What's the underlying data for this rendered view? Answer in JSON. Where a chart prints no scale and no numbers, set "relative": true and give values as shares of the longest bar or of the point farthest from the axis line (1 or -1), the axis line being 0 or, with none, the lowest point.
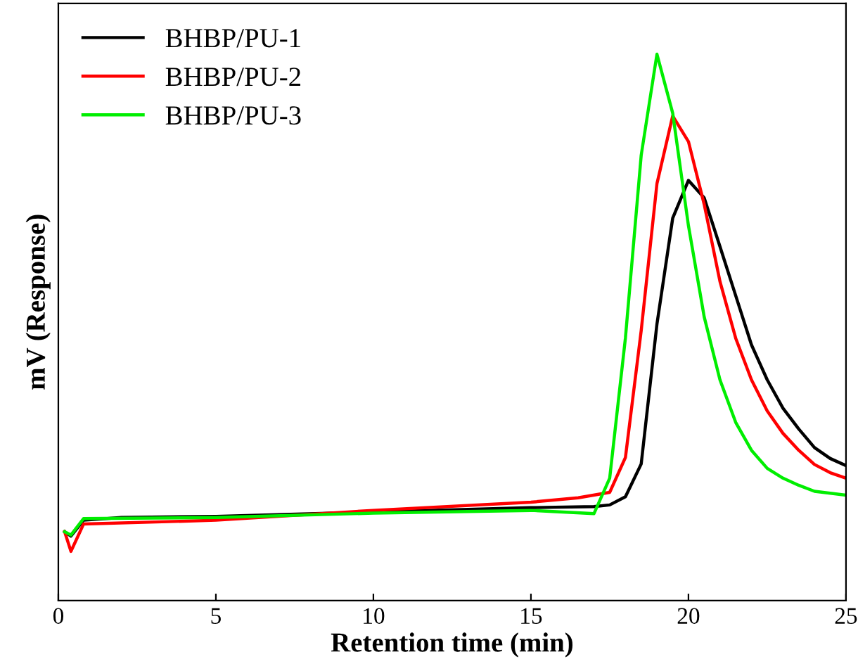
{
  "chart_data": {
    "type": "line",
    "relative": true,
    "xlabel": "Retention time (min)",
    "ylabel": "mV (Response)",
    "xlim": [
      0,
      25
    ],
    "xticks": [
      0,
      5,
      10,
      15,
      20,
      25
    ],
    "legend": "top left",
    "grid": false,
    "marker": "none",
    "line_style": "solid",
    "series": [
      {
        "name": "BHBP/PU-1",
        "color": "#000000",
        "x": [
          0.2,
          0.4,
          0.8,
          2,
          5,
          10,
          15,
          17,
          17.5,
          18,
          18.5,
          19,
          19.5,
          20,
          20.5,
          21,
          21.5,
          22,
          22.5,
          23,
          23.5,
          24,
          24.5,
          25
        ],
        "values": [
          0.126,
          0.118,
          0.147,
          0.152,
          0.154,
          0.162,
          0.17,
          0.172,
          0.175,
          0.19,
          0.25,
          0.506,
          0.7,
          0.769,
          0.737,
          0.648,
          0.558,
          0.468,
          0.404,
          0.352,
          0.314,
          0.28,
          0.26,
          0.247
        ]
      },
      {
        "name": "BHBP/PU-2",
        "color": "#ff0000",
        "x": [
          0.2,
          0.4,
          0.8,
          5,
          10,
          15,
          16.5,
          17.5,
          18,
          18.5,
          19,
          19.5,
          20,
          20.5,
          21,
          21.5,
          22,
          22.5,
          23,
          23.5,
          24,
          24.5,
          25
        ],
        "values": [
          0.126,
          0.09,
          0.14,
          0.147,
          0.165,
          0.18,
          0.188,
          0.198,
          0.262,
          0.494,
          0.763,
          0.887,
          0.84,
          0.725,
          0.584,
          0.48,
          0.404,
          0.347,
          0.306,
          0.275,
          0.249,
          0.234,
          0.224
        ]
      },
      {
        "name": "BHBP/PU-3",
        "color": "#00ee00",
        "x": [
          0.2,
          0.4,
          0.8,
          5,
          10,
          15,
          17,
          17.5,
          18,
          18.5,
          19,
          19.5,
          20,
          20.5,
          21,
          21.5,
          22,
          22.5,
          23,
          23.5,
          24,
          25
        ],
        "values": [
          0.126,
          0.12,
          0.15,
          0.152,
          0.16,
          0.165,
          0.159,
          0.224,
          0.481,
          0.815,
          1.0,
          0.892,
          0.686,
          0.519,
          0.404,
          0.326,
          0.275,
          0.242,
          0.224,
          0.211,
          0.2,
          0.193
        ]
      }
    ]
  }
}
